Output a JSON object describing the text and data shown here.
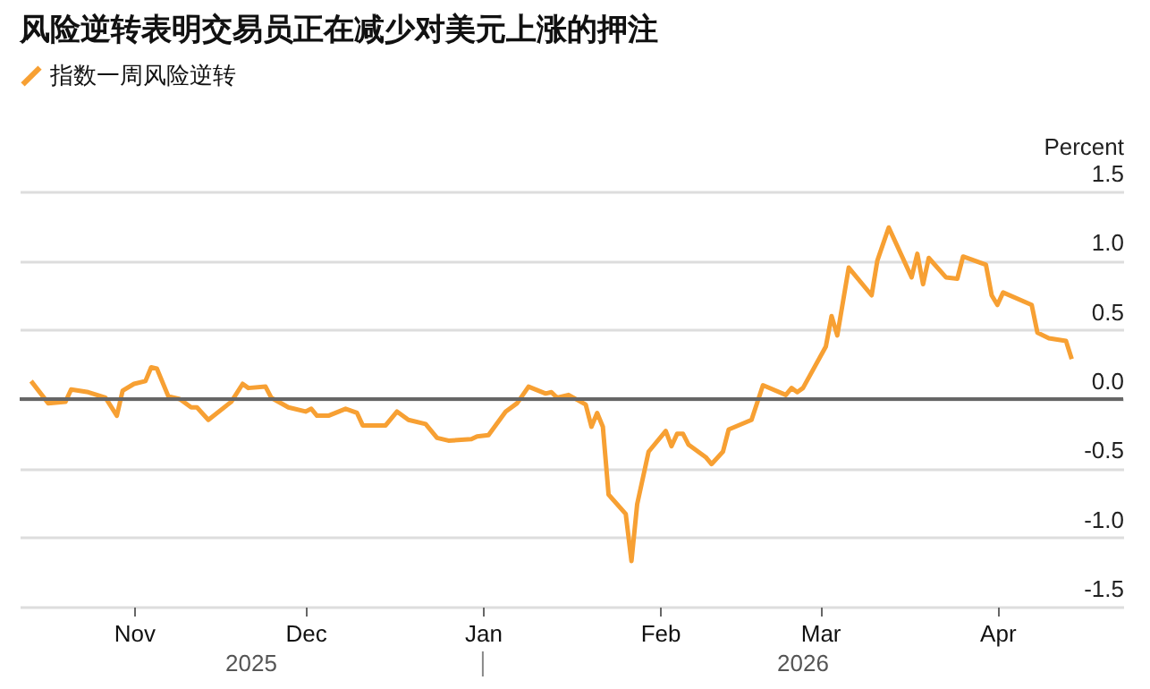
{
  "chart_data": {
    "type": "line",
    "title": "风险逆转表明交易员正在减少对美元上涨的押注",
    "ylabel": "Percent",
    "x": [
      "2025-10-14",
      "2025-10-17",
      "2025-10-20",
      "2025-10-21",
      "2025-10-24",
      "2025-10-27",
      "2025-10-29",
      "2025-10-30",
      "2025-11-01",
      "2025-11-03",
      "2025-11-04",
      "2025-11-05",
      "2025-11-07",
      "2025-11-09",
      "2025-11-11",
      "2025-11-12",
      "2025-11-14",
      "2025-11-18",
      "2025-11-20",
      "2025-11-21",
      "2025-11-24",
      "2025-11-25",
      "2025-11-28",
      "2025-12-01",
      "2025-12-02",
      "2025-12-03",
      "2025-12-04",
      "2025-12-05",
      "2025-12-08",
      "2025-12-10",
      "2025-12-11",
      "2025-12-15",
      "2025-12-17",
      "2025-12-19",
      "2025-12-22",
      "2025-12-24",
      "2025-12-26",
      "2025-12-30",
      "2025-12-31",
      "2026-01-02",
      "2026-01-05",
      "2026-01-07",
      "2026-01-09",
      "2026-01-12",
      "2026-01-13",
      "2026-01-14",
      "2026-01-16",
      "2026-01-19",
      "2026-01-20",
      "2026-01-21",
      "2026-01-22",
      "2026-01-23",
      "2026-01-26",
      "2026-01-27",
      "2026-01-28",
      "2026-01-30",
      "2026-02-02",
      "2026-02-03",
      "2026-02-04",
      "2026-02-05",
      "2026-02-06",
      "2026-02-09",
      "2026-02-10",
      "2026-02-12",
      "2026-02-13",
      "2026-02-17",
      "2026-02-19",
      "2026-02-23",
      "2026-02-24",
      "2026-02-25",
      "2026-02-26",
      "2026-03-02",
      "2026-03-03",
      "2026-03-04",
      "2026-03-06",
      "2026-03-10",
      "2026-03-11",
      "2026-03-13",
      "2026-03-17",
      "2026-03-18",
      "2026-03-19",
      "2026-03-20",
      "2026-03-23",
      "2026-03-25",
      "2026-03-26",
      "2026-03-30",
      "2026-03-31",
      "2026-04-01",
      "2026-04-02",
      "2026-04-07",
      "2026-04-08",
      "2026-04-10",
      "2026-04-13",
      "2026-04-14"
    ],
    "series": [
      {
        "name": "指数一周风险逆转",
        "color": "#f7a033",
        "values": [
          0.13,
          -0.03,
          -0.02,
          0.07,
          0.05,
          0.01,
          -0.12,
          0.06,
          0.11,
          0.13,
          0.23,
          0.22,
          0.02,
          0.0,
          -0.06,
          -0.06,
          -0.15,
          -0.02,
          0.11,
          0.08,
          0.09,
          0.01,
          -0.06,
          -0.09,
          -0.07,
          -0.12,
          -0.12,
          -0.12,
          -0.07,
          -0.1,
          -0.19,
          -0.19,
          -0.09,
          -0.15,
          -0.18,
          -0.28,
          -0.3,
          -0.29,
          -0.27,
          -0.26,
          -0.09,
          -0.03,
          0.09,
          0.04,
          0.05,
          0.01,
          0.03,
          -0.04,
          -0.2,
          -0.1,
          -0.2,
          -0.69,
          -0.83,
          -1.17,
          -0.76,
          -0.38,
          -0.23,
          -0.34,
          -0.25,
          -0.25,
          -0.33,
          -0.42,
          -0.47,
          -0.38,
          -0.22,
          -0.15,
          0.1,
          0.03,
          0.08,
          0.05,
          0.08,
          0.38,
          0.6,
          0.46,
          0.95,
          0.75,
          1.0,
          1.24,
          0.88,
          1.05,
          0.83,
          1.02,
          0.88,
          0.87,
          1.03,
          0.97,
          0.75,
          0.68,
          0.77,
          0.68,
          0.48,
          0.44,
          0.42,
          0.29
        ]
      }
    ],
    "xlim": [
      "2025-10-12",
      "2026-04-23"
    ],
    "xticks": [
      {
        "value": "2025-11-01",
        "label": "Nov"
      },
      {
        "value": "2025-12-01",
        "label": "Dec"
      },
      {
        "value": "2026-01-01",
        "label": "Jan"
      },
      {
        "value": "2026-02-01",
        "label": "Feb"
      },
      {
        "value": "2026-03-01",
        "label": "Mar"
      },
      {
        "value": "2026-04-01",
        "label": "Apr"
      }
    ],
    "ylim": [
      -1.5,
      1.5
    ],
    "yticks": [
      {
        "value": -1.5,
        "label": "-1.5"
      },
      {
        "value": -1,
        "label": "-1.0"
      },
      {
        "value": -0.5,
        "label": "-0.5"
      },
      {
        "value": 0,
        "label": "0.0"
      },
      {
        "value": 0.5,
        "label": "0.5"
      },
      {
        "value": 1,
        "label": "1.0"
      },
      {
        "value": 1.5,
        "label": "1.5"
      }
    ],
    "ref_lines": [
      {
        "axis": "y",
        "value": 0,
        "color": "#666666"
      }
    ],
    "annotations": [
      "2025",
      "2026"
    ],
    "grid": "y",
    "legend": "top left",
    "line_style": "solid",
    "marker": "none"
  }
}
